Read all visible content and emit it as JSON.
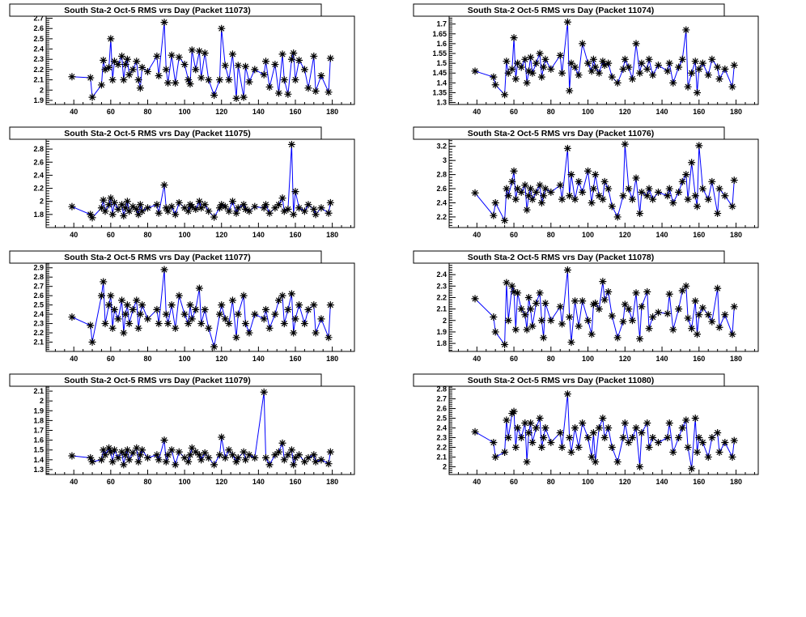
{
  "chart_data": {
    "type": "line",
    "xlim": [
      25,
      192
    ],
    "x_ticks": [
      40,
      60,
      80,
      100,
      120,
      140,
      160,
      180
    ],
    "marker": "asterisk",
    "line_color": "#0000ff",
    "marker_color": "#000000",
    "x": [
      39,
      49,
      50,
      55,
      56,
      57,
      59,
      60,
      61,
      62,
      64,
      66,
      67,
      68,
      69,
      70,
      72,
      74,
      75,
      76,
      77,
      80,
      85,
      86,
      89,
      90,
      91,
      93,
      95,
      97,
      100,
      102,
      103,
      104,
      106,
      108,
      109,
      111,
      113,
      116,
      119,
      120,
      122,
      124,
      126,
      128,
      129,
      132,
      133,
      135,
      138,
      143,
      144,
      146,
      149,
      151,
      153,
      154,
      156,
      158,
      159,
      160,
      162,
      165,
      167,
      170,
      171,
      174,
      178,
      179
    ],
    "panels": [
      {
        "title": "South Sta-2 Oct-5 RMS vrs Day (Packet 11073)",
        "ylim": [
          1.86,
          2.72
        ],
        "y_ticks": [
          "1.9",
          "2",
          "2.1",
          "2.2",
          "2.3",
          "2.4",
          "2.5",
          "2.6",
          "2.7"
        ],
        "values": [
          2.13,
          2.12,
          1.93,
          2.05,
          2.29,
          2.2,
          2.22,
          2.5,
          2.1,
          2.28,
          2.25,
          2.33,
          2.1,
          2.25,
          2.3,
          2.15,
          2.2,
          2.28,
          2.1,
          2.02,
          2.22,
          2.18,
          2.33,
          2.14,
          2.66,
          2.2,
          2.07,
          2.34,
          2.07,
          2.32,
          2.25,
          2.1,
          2.06,
          2.39,
          2.2,
          2.38,
          2.12,
          2.36,
          2.1,
          1.95,
          2.1,
          2.6,
          2.24,
          2.1,
          2.35,
          1.92,
          2.24,
          1.93,
          2.23,
          2.08,
          2.2,
          2.15,
          2.28,
          2.03,
          2.25,
          1.97,
          2.35,
          2.1,
          1.96,
          2.3,
          2.36,
          2.1,
          2.29,
          2.2,
          2.02,
          2.33,
          1.99,
          2.14,
          1.98,
          2.31
        ]
      },
      {
        "title": "South Sta-2 Oct-5 RMS vrs Day (Packet 11074)",
        "ylim": [
          1.29,
          1.74
        ],
        "y_ticks": [
          "1.3",
          "1.35",
          "1.4",
          "1.45",
          "1.5",
          "1.55",
          "1.6",
          "1.65",
          "1.7"
        ],
        "values": [
          1.46,
          1.43,
          1.39,
          1.34,
          1.51,
          1.45,
          1.47,
          1.63,
          1.42,
          1.5,
          1.48,
          1.52,
          1.4,
          1.46,
          1.53,
          1.45,
          1.5,
          1.55,
          1.43,
          1.48,
          1.52,
          1.47,
          1.54,
          1.45,
          1.71,
          1.36,
          1.5,
          1.48,
          1.44,
          1.6,
          1.5,
          1.46,
          1.52,
          1.48,
          1.45,
          1.51,
          1.49,
          1.5,
          1.43,
          1.4,
          1.47,
          1.52,
          1.48,
          1.42,
          1.6,
          1.45,
          1.5,
          1.47,
          1.52,
          1.44,
          1.49,
          1.46,
          1.5,
          1.4,
          1.48,
          1.52,
          1.67,
          1.38,
          1.45,
          1.51,
          1.35,
          1.47,
          1.5,
          1.44,
          1.52,
          1.48,
          1.42,
          1.47,
          1.38,
          1.49
        ]
      },
      {
        "title": "South Sta-2 Oct-5 RMS vrs Day (Packet 11075)",
        "ylim": [
          1.6,
          2.95
        ],
        "y_ticks": [
          "1.8",
          "2",
          "2.2",
          "2.4",
          "2.6",
          "2.8"
        ],
        "values": [
          1.92,
          1.8,
          1.75,
          1.9,
          2.02,
          1.85,
          1.95,
          2.05,
          1.8,
          1.98,
          1.88,
          1.95,
          1.78,
          1.9,
          2.0,
          1.85,
          1.92,
          1.88,
          1.8,
          1.95,
          1.85,
          1.9,
          1.95,
          1.82,
          2.25,
          1.9,
          1.85,
          1.92,
          1.8,
          1.98,
          1.9,
          1.85,
          1.95,
          1.92,
          1.88,
          2.0,
          1.9,
          1.95,
          1.85,
          1.76,
          1.9,
          1.95,
          1.92,
          1.85,
          2.0,
          1.82,
          1.9,
          1.95,
          1.88,
          1.85,
          1.92,
          1.9,
          1.95,
          1.82,
          1.9,
          1.95,
          2.05,
          1.85,
          1.88,
          2.87,
          1.8,
          2.15,
          1.9,
          1.85,
          1.95,
          1.88,
          1.8,
          1.9,
          1.82,
          1.98
        ]
      },
      {
        "title": "South Sta-2 Oct-5 RMS vrs Day (Packet 11076)",
        "ylim": [
          2.05,
          3.3
        ],
        "y_ticks": [
          "2.2",
          "2.4",
          "2.6",
          "2.8",
          "3",
          "3.2"
        ],
        "values": [
          2.54,
          2.22,
          2.4,
          2.15,
          2.6,
          2.5,
          2.7,
          2.85,
          2.45,
          2.6,
          2.55,
          2.65,
          2.3,
          2.5,
          2.6,
          2.45,
          2.55,
          2.65,
          2.4,
          2.5,
          2.6,
          2.55,
          2.65,
          2.45,
          3.17,
          2.5,
          2.8,
          2.45,
          2.7,
          2.55,
          2.85,
          2.4,
          2.6,
          2.8,
          2.5,
          2.45,
          2.7,
          2.6,
          2.35,
          2.2,
          2.5,
          3.23,
          2.6,
          2.45,
          2.75,
          2.25,
          2.55,
          2.5,
          2.6,
          2.45,
          2.55,
          2.5,
          2.6,
          2.4,
          2.55,
          2.7,
          2.8,
          2.45,
          2.97,
          2.5,
          2.35,
          3.21,
          2.6,
          2.45,
          2.7,
          2.25,
          2.6,
          2.5,
          2.35,
          2.72
        ]
      },
      {
        "title": "South Sta-2 Oct-5 RMS vrs Day (Packet 11077)",
        "ylim": [
          2.0,
          2.95
        ],
        "y_ticks": [
          "2.1",
          "2.2",
          "2.3",
          "2.4",
          "2.5",
          "2.6",
          "2.7",
          "2.8",
          "2.9"
        ],
        "values": [
          2.37,
          2.28,
          2.1,
          2.6,
          2.75,
          2.3,
          2.5,
          2.6,
          2.25,
          2.45,
          2.35,
          2.55,
          2.2,
          2.4,
          2.5,
          2.3,
          2.45,
          2.55,
          2.25,
          2.4,
          2.5,
          2.35,
          2.45,
          2.3,
          2.88,
          2.4,
          2.3,
          2.5,
          2.25,
          2.6,
          2.4,
          2.3,
          2.5,
          2.35,
          2.45,
          2.68,
          2.3,
          2.45,
          2.25,
          2.05,
          2.4,
          2.5,
          2.35,
          2.3,
          2.55,
          2.15,
          2.4,
          2.6,
          2.3,
          2.2,
          2.4,
          2.35,
          2.45,
          2.25,
          2.4,
          2.55,
          2.6,
          2.3,
          2.45,
          2.62,
          2.2,
          2.35,
          2.5,
          2.3,
          2.45,
          2.5,
          2.2,
          2.35,
          2.15,
          2.5
        ]
      },
      {
        "title": "South Sta-2 Oct-5 RMS vrs Day (Packet 11078)",
        "ylim": [
          1.73,
          2.5
        ],
        "y_ticks": [
          "1.8",
          "1.9",
          "2",
          "2.1",
          "2.2",
          "2.3",
          "2.4"
        ],
        "values": [
          2.19,
          2.03,
          1.9,
          1.79,
          2.33,
          2.0,
          2.3,
          2.25,
          1.92,
          2.24,
          2.1,
          2.05,
          1.92,
          2.2,
          2.1,
          1.95,
          2.15,
          2.24,
          2.0,
          1.85,
          2.15,
          2.0,
          2.12,
          1.97,
          2.44,
          2.03,
          1.81,
          2.17,
          1.95,
          2.17,
          2.0,
          1.88,
          2.14,
          2.15,
          2.1,
          2.34,
          2.18,
          2.25,
          2.04,
          1.85,
          1.99,
          2.14,
          2.1,
          2.0,
          2.24,
          1.84,
          2.12,
          2.25,
          1.93,
          2.03,
          2.07,
          2.06,
          2.23,
          1.92,
          2.1,
          2.26,
          2.3,
          2.02,
          1.93,
          2.17,
          1.88,
          2.05,
          2.11,
          2.05,
          1.99,
          2.28,
          1.94,
          2.05,
          1.88,
          2.12
        ]
      },
      {
        "title": "South Sta-2 Oct-5 RMS vrs Day (Packet 11079)",
        "ylim": [
          1.25,
          2.15
        ],
        "y_ticks": [
          "1.3",
          "1.4",
          "1.5",
          "1.6",
          "1.7",
          "1.8",
          "1.9",
          "2",
          "2.1"
        ],
        "values": [
          1.44,
          1.42,
          1.38,
          1.4,
          1.5,
          1.45,
          1.52,
          1.48,
          1.38,
          1.5,
          1.42,
          1.48,
          1.35,
          1.45,
          1.5,
          1.4,
          1.47,
          1.52,
          1.38,
          1.45,
          1.5,
          1.42,
          1.45,
          1.4,
          1.6,
          1.38,
          1.45,
          1.5,
          1.35,
          1.48,
          1.42,
          1.38,
          1.45,
          1.52,
          1.48,
          1.45,
          1.4,
          1.47,
          1.42,
          1.35,
          1.45,
          1.63,
          1.42,
          1.5,
          1.45,
          1.38,
          1.42,
          1.48,
          1.4,
          1.45,
          1.42,
          2.09,
          1.42,
          1.35,
          1.45,
          1.48,
          1.57,
          1.4,
          1.45,
          1.5,
          1.35,
          1.42,
          1.45,
          1.38,
          1.42,
          1.45,
          1.38,
          1.4,
          1.36,
          1.48
        ]
      },
      {
        "title": "South Sta-2 Oct-5 RMS vrs Day (Packet 11080)",
        "ylim": [
          1.92,
          2.83
        ],
        "y_ticks": [
          "2",
          "2.1",
          "2.2",
          "2.3",
          "2.4",
          "2.5",
          "2.6",
          "2.7",
          "2.8"
        ],
        "values": [
          2.36,
          2.25,
          2.1,
          2.15,
          2.48,
          2.3,
          2.55,
          2.57,
          2.2,
          2.4,
          2.3,
          2.45,
          2.05,
          2.35,
          2.45,
          2.25,
          2.4,
          2.5,
          2.2,
          2.3,
          2.4,
          2.25,
          2.35,
          2.2,
          2.75,
          2.3,
          2.15,
          2.4,
          2.2,
          2.45,
          2.3,
          2.1,
          2.35,
          2.05,
          2.4,
          2.5,
          2.3,
          2.4,
          2.2,
          2.05,
          2.3,
          2.45,
          2.25,
          2.3,
          2.4,
          2.0,
          2.35,
          2.45,
          2.2,
          2.3,
          2.25,
          2.3,
          2.45,
          2.15,
          2.3,
          2.4,
          2.48,
          2.2,
          1.98,
          2.5,
          2.15,
          2.3,
          2.25,
          2.1,
          2.3,
          2.35,
          2.15,
          2.25,
          2.1,
          2.27
        ]
      }
    ]
  }
}
